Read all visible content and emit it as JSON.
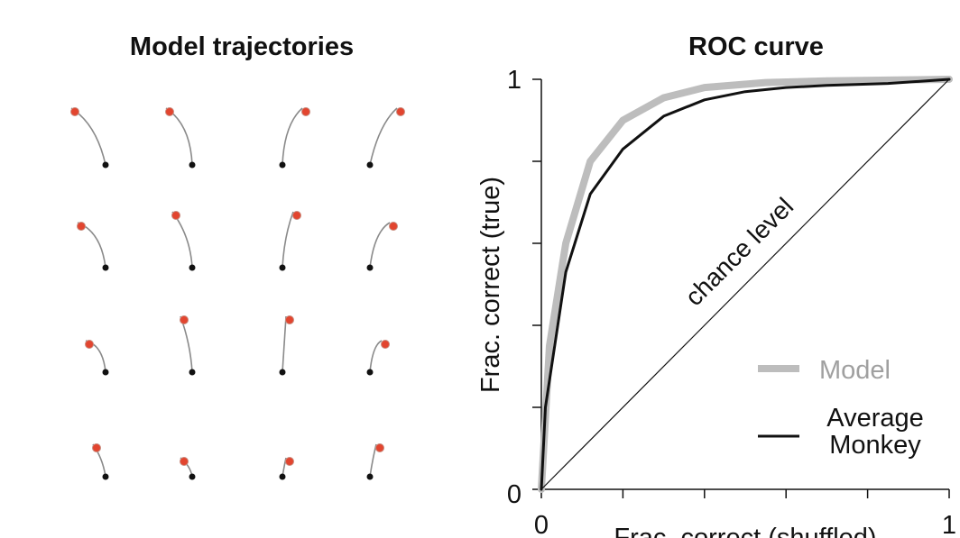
{
  "left_panel": {
    "title": "Model trajectories",
    "colors": {
      "start_marker": "#e2452f",
      "end_marker": "#111111",
      "path": "#8a8a8a"
    }
  },
  "chart_data": {
    "type": "line",
    "title": "ROC curve",
    "xlabel": "Frac. correct (shuffled)",
    "ylabel": "Frac. correct (true)",
    "xlim": [
      0,
      1
    ],
    "ylim": [
      0,
      1
    ],
    "x_tick_labels": [
      "0",
      "1"
    ],
    "y_tick_labels": [
      "0",
      "1"
    ],
    "legend_position": "bottom-right",
    "annotation": "chance level",
    "series": [
      {
        "name": "Model",
        "color": "#bdbdbd",
        "x": [
          0,
          0.02,
          0.06,
          0.12,
          0.2,
          0.3,
          0.4,
          0.55,
          0.7,
          0.85,
          1.0
        ],
        "y": [
          0,
          0.35,
          0.6,
          0.8,
          0.9,
          0.955,
          0.98,
          0.992,
          0.996,
          0.998,
          1.0
        ]
      },
      {
        "name": "Average Monkey",
        "color": "#111111",
        "x": [
          0,
          0.01,
          0.06,
          0.12,
          0.2,
          0.3,
          0.4,
          0.5,
          0.6,
          0.7,
          0.85,
          1.0
        ],
        "y": [
          0,
          0.2,
          0.53,
          0.72,
          0.83,
          0.91,
          0.95,
          0.97,
          0.98,
          0.985,
          0.99,
          1.0
        ]
      },
      {
        "name": "",
        "color": "#111111",
        "x": [
          0,
          1
        ],
        "y": [
          0,
          1
        ]
      }
    ]
  }
}
